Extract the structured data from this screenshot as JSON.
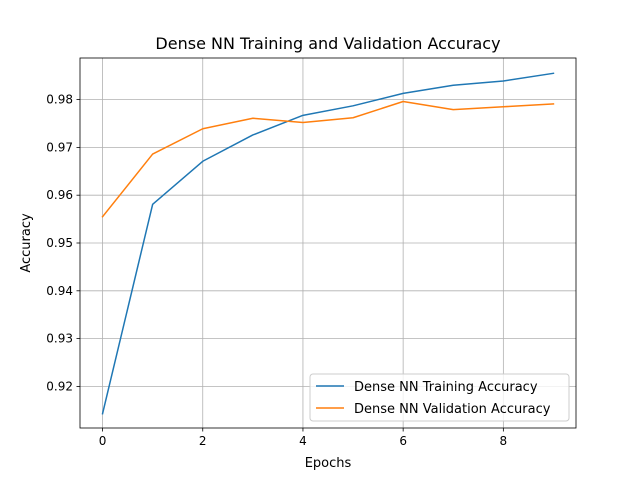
{
  "chart_data": {
    "type": "line",
    "title": "Dense NN Training and Validation Accuracy",
    "xlabel": "Epochs",
    "ylabel": "Accuracy",
    "x": [
      0,
      1,
      2,
      3,
      4,
      5,
      6,
      7,
      8,
      9
    ],
    "xlim": [
      -0.45,
      9.45
    ],
    "ylim": [
      0.9113,
      0.9887
    ],
    "xticks": [
      0,
      2,
      4,
      6,
      8
    ],
    "xtick_labels": [
      "0",
      "2",
      "4",
      "6",
      "8"
    ],
    "yticks": [
      0.92,
      0.93,
      0.94,
      0.95,
      0.96,
      0.97,
      0.98
    ],
    "ytick_labels": [
      "0.92",
      "0.93",
      "0.94",
      "0.95",
      "0.96",
      "0.97",
      "0.98"
    ],
    "grid": true,
    "legend_position": "lower-right",
    "series": [
      {
        "name": "Dense NN Training Accuracy",
        "color": "#1f77b4",
        "values": [
          0.9143,
          0.9581,
          0.9671,
          0.9726,
          0.9767,
          0.9787,
          0.9813,
          0.983,
          0.9839,
          0.9855
        ]
      },
      {
        "name": "Dense NN Validation Accuracy",
        "color": "#ff7f0e",
        "values": [
          0.9555,
          0.9686,
          0.9739,
          0.9761,
          0.9752,
          0.9762,
          0.9796,
          0.9779,
          0.9785,
          0.9791
        ]
      }
    ]
  }
}
